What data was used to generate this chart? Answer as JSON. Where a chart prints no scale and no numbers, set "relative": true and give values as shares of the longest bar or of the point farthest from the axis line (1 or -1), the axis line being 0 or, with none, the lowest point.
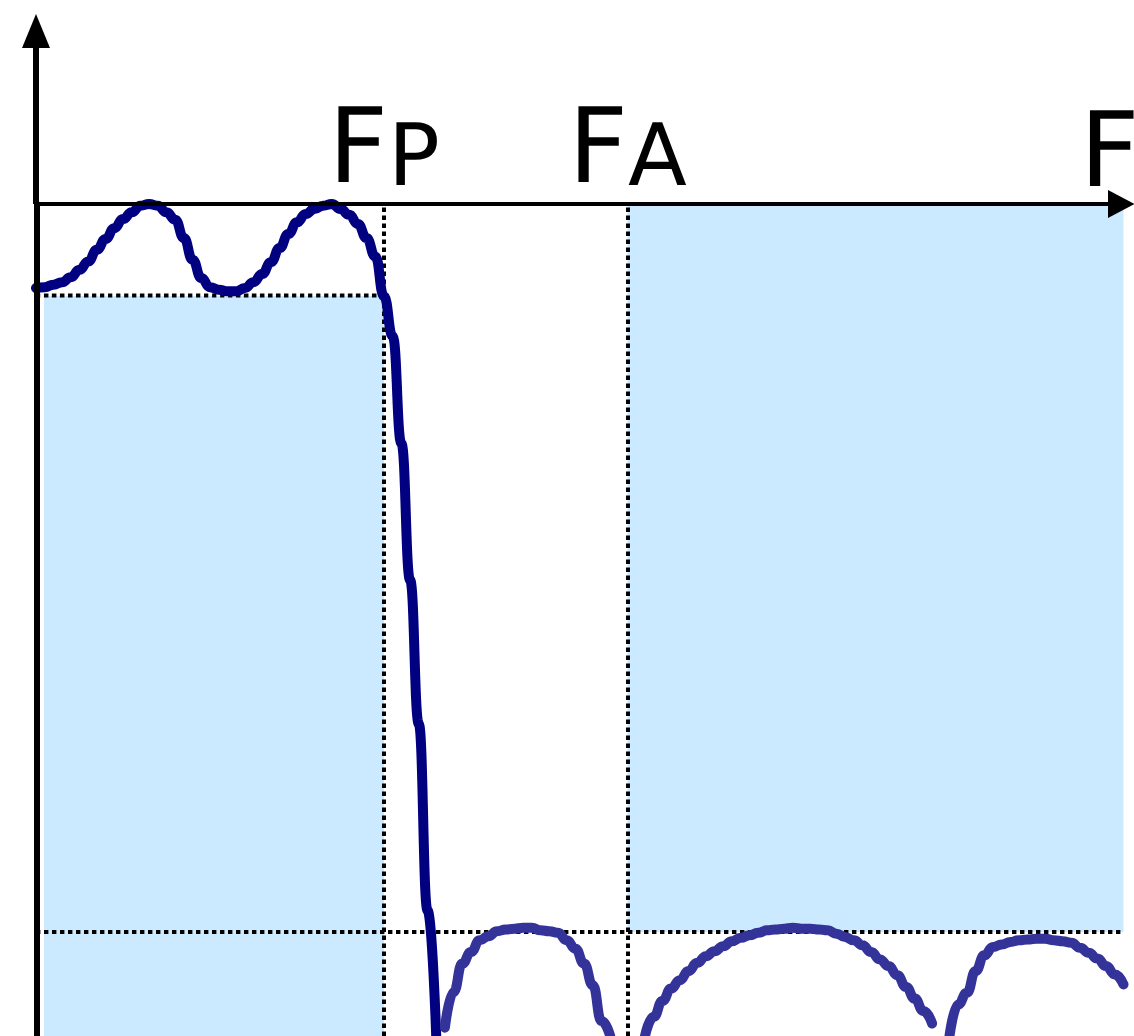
{
  "chart_data": {
    "type": "line",
    "relative": true,
    "xlabel": "F",
    "marker": "none",
    "line_style": "solid",
    "categories": [
      null,
      null,
      null,
      null,
      null,
      null,
      null,
      null,
      null,
      null,
      null,
      null,
      null,
      null,
      null,
      null,
      null,
      null,
      null,
      null,
      null,
      null,
      null,
      null,
      null,
      null,
      null,
      null,
      null,
      null,
      null,
      null,
      null,
      null,
      null,
      null,
      null,
      null,
      null,
      null,
      "F$_{P}$",
      null,
      null,
      null,
      null,
      null,
      null,
      null,
      null,
      null,
      null,
      null,
      null,
      null,
      null,
      null,
      null,
      null,
      null,
      null,
      null,
      null,
      null,
      null,
      null,
      null,
      null,
      null,
      "F$_{A}$",
      null,
      null,
      null,
      null,
      null,
      null,
      null,
      null,
      null,
      null,
      null,
      null,
      null,
      null,
      null,
      null,
      null,
      null,
      null,
      null,
      null,
      null,
      null,
      null,
      null,
      null,
      null,
      null,
      null,
      null,
      null,
      null,
      null,
      null,
      null,
      null,
      null,
      null,
      null,
      null,
      null,
      null,
      null,
      null,
      null,
      null,
      null,
      null,
      null,
      null,
      null,
      null,
      null,
      null,
      null,
      null,
      null
    ],
    "series": [
      {
        "type": "area",
        "color": "#cceaff",
        "values": [
          null,
          null,
          null,
          null,
          null,
          null,
          null,
          null,
          null,
          null,
          null,
          null,
          null,
          null,
          null,
          null,
          null,
          null,
          null,
          null,
          null,
          null,
          null,
          null,
          null,
          null,
          null,
          null,
          null,
          null,
          null,
          null,
          null,
          null,
          null,
          null,
          null,
          null,
          null,
          null,
          null,
          null,
          null,
          null,
          null,
          null,
          null,
          null,
          null,
          null,
          null,
          null,
          null,
          null,
          null,
          null,
          null,
          null,
          null,
          null,
          null,
          null,
          null,
          null,
          null,
          null,
          null,
          null,
          -0.875,
          -0.875,
          -0.875,
          -0.875,
          -0.875,
          -0.875,
          -0.875,
          -0.875,
          -0.875,
          -0.875,
          -0.875,
          -0.875,
          -0.875,
          -0.875,
          -0.875,
          -0.875,
          -0.875,
          -0.875,
          -0.875,
          -0.875,
          -0.875,
          -0.875,
          -0.875,
          -0.875,
          -0.875,
          -0.875,
          -0.875,
          -0.875,
          -0.875,
          -0.875,
          -0.875,
          -0.875,
          -0.875,
          -0.875,
          -0.875,
          -0.875,
          -0.875,
          -0.875,
          -0.875,
          -0.875,
          -0.875,
          -0.875,
          -0.875,
          -0.875,
          -0.875,
          -0.875,
          -0.875,
          -0.875,
          -0.875,
          -0.875,
          -0.875,
          -0.875,
          -0.875,
          -0.875,
          -0.875,
          -0.875,
          -0.875,
          -0.875
        ]
      },
      {
        "color": "#000000",
        "line_style": "dotted",
        "values": [
          -0.11,
          -0.11,
          -0.11,
          -0.11,
          -0.11,
          -0.11,
          -0.11,
          -0.11,
          -0.11,
          -0.11,
          -0.11,
          -0.11,
          -0.11,
          -0.11,
          -0.11,
          -0.11,
          -0.11,
          -0.11,
          -0.11,
          -0.11,
          -0.11,
          -0.11,
          -0.11,
          -0.11,
          -0.11,
          -0.11,
          -0.11,
          -0.11,
          -0.11,
          -0.11,
          -0.11,
          -0.11,
          -0.11,
          -0.11,
          -0.11,
          -0.11,
          -0.11,
          -0.11,
          -0.11,
          -0.11,
          -0.11,
          null,
          null,
          null,
          null,
          null,
          null,
          null,
          null,
          null,
          null,
          null,
          null,
          null,
          null,
          null,
          null,
          null,
          null,
          null,
          null,
          null,
          null,
          null,
          null,
          null,
          null,
          null,
          null,
          null,
          null,
          null,
          null,
          null,
          null,
          null,
          null,
          null,
          null,
          null,
          null,
          null,
          null,
          null,
          null,
          null,
          null,
          null,
          null,
          null,
          null,
          null,
          null,
          null,
          null,
          null,
          null,
          null,
          null,
          null,
          null,
          null,
          null,
          null,
          null,
          null,
          null,
          null,
          null,
          null,
          null,
          null,
          null,
          null,
          null,
          null,
          null,
          null,
          null,
          null,
          null,
          null,
          null,
          null,
          null,
          null
        ]
      },
      {
        "color": "#000080",
        "values": [
          -0.101,
          -0.1,
          -0.097,
          -0.094,
          -0.088,
          -0.079,
          -0.069,
          -0.055,
          -0.042,
          -0.029,
          -0.018,
          -0.01,
          -0.002,
          0,
          -0.002,
          -0.01,
          -0.019,
          -0.041,
          -0.067,
          -0.089,
          -0.1,
          -0.103,
          -0.105,
          -0.105,
          -0.101,
          -0.094,
          -0.084,
          -0.07,
          -0.053,
          -0.036,
          -0.022,
          -0.012,
          -0.006,
          -0.002,
          0,
          -0.006,
          -0.013,
          -0.024,
          -0.041,
          -0.063,
          -0.111,
          -0.159,
          -0.288,
          -0.452,
          -0.625,
          -0.849,
          -1,
          null,
          null,
          null,
          null,
          null,
          null,
          null,
          null,
          null,
          null,
          null,
          null,
          null,
          null,
          null,
          null,
          null,
          null,
          null,
          null,
          null,
          null,
          null,
          null,
          null,
          null,
          null,
          null,
          null,
          null,
          null,
          null,
          null,
          null,
          null,
          null,
          null,
          null,
          null,
          null,
          null,
          null,
          null,
          null,
          null,
          null,
          null,
          null,
          null,
          null,
          null,
          null,
          null,
          null,
          null,
          null,
          null,
          null,
          null,
          null,
          null,
          null,
          null,
          null,
          null,
          null,
          null,
          null,
          null,
          null,
          null,
          null,
          null,
          null,
          null,
          null,
          null,
          null,
          null
        ]
      },
      {
        "color": "#333399",
        "values": [
          null,
          null,
          null,
          null,
          null,
          null,
          null,
          null,
          null,
          null,
          null,
          null,
          null,
          null,
          null,
          null,
          null,
          null,
          null,
          null,
          null,
          null,
          null,
          null,
          null,
          null,
          null,
          null,
          null,
          null,
          null,
          null,
          null,
          null,
          null,
          null,
          null,
          null,
          null,
          null,
          null,
          null,
          null,
          null,
          null,
          null,
          null,
          -0.99,
          -0.947,
          -0.913,
          -0.899,
          -0.885,
          -0.88,
          -0.874,
          -0.872,
          -0.871,
          -0.87,
          -0.87,
          -0.873,
          -0.874,
          -0.876,
          -0.885,
          -0.895,
          -0.913,
          -0.939,
          -0.982,
          -1,
          null,
          null,
          null,
          -1,
          -0.977,
          -0.958,
          -0.943,
          -0.933,
          -0.922,
          -0.912,
          -0.904,
          -0.898,
          -0.892,
          -0.886,
          -0.882,
          -0.879,
          -0.876,
          -0.873,
          -0.872,
          -0.871,
          -0.87,
          -0.871,
          -0.871,
          -0.872,
          -0.873,
          -0.877,
          -0.881,
          -0.885,
          -0.891,
          -0.899,
          -0.908,
          -0.916,
          -0.927,
          -0.941,
          -0.955,
          -0.97,
          -0.985,
          null,
          -1,
          -0.962,
          -0.948,
          -0.922,
          -0.903,
          -0.893,
          -0.89,
          -0.887,
          -0.885,
          -0.884,
          -0.883,
          -0.883,
          -0.885,
          -0.886,
          -0.888,
          -0.894,
          -0.9,
          -0.907,
          -0.916,
          -0.926,
          -0.938
        ]
      }
    ],
    "ref_lines": [
      {
        "axis": "x",
        "value": "F$_{P}$",
        "color": "#000000",
        "line_style": "dotted"
      },
      {
        "axis": "x",
        "value": "F$_{A}$",
        "color": "#000000",
        "line_style": "dotted"
      },
      {
        "axis": "y",
        "value": -0.875,
        "color": "#000000",
        "line_style": "dotted"
      }
    ]
  }
}
